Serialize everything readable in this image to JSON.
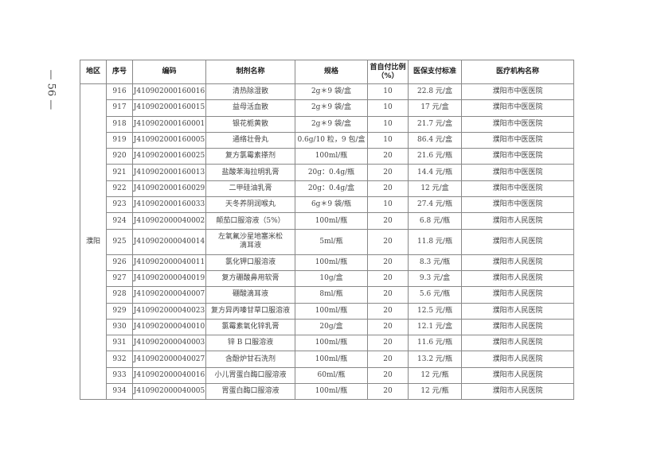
{
  "page_number": "— 56 —",
  "headers": [
    "地区",
    "序号",
    "编码",
    "制剂名称",
    "规格",
    "首自付比例（%）",
    "医保支付标准",
    "医疗机构名称"
  ],
  "region": "濮阳",
  "rows": [
    [
      "916",
      "J410902000160016",
      "清热除湿散",
      "2g＊9 袋/盒",
      "10",
      "22.8 元/盒",
      "濮阳市中医医院"
    ],
    [
      "917",
      "J410902000160015",
      "益母活血散",
      "2g＊9 袋/盒",
      "10",
      "17 元/盒",
      "濮阳市中医医院"
    ],
    [
      "918",
      "J410902000160001",
      "银花栀黄散",
      "2g＊9 袋/盒",
      "10",
      "21.7 元/盒",
      "濮阳市中医医院"
    ],
    [
      "919",
      "J410902000160005",
      "通络壮骨丸",
      "0.6g/10 粒，9 包/盒",
      "10",
      "86.4 元/盒",
      "濮阳市中医医院"
    ],
    [
      "920",
      "J410902000160025",
      "复方氯霉素搽剂",
      "100ml/瓶",
      "20",
      "21.6 元/瓶",
      "濮阳市中医医院"
    ],
    [
      "921",
      "J410902000160013",
      "盐酸苯海拉明乳膏",
      "20g：0.4g/瓶",
      "20",
      "14.4 元/瓶",
      "濮阳市中医医院"
    ],
    [
      "922",
      "J410902000160029",
      "二甲硅油乳膏",
      "20g：0.4g/盒",
      "20",
      "12 元/盒",
      "濮阳市中医医院"
    ],
    [
      "923",
      "J410902000160033",
      "天冬养阴润喉丸",
      "6g＊9 袋/瓶",
      "10",
      "27.4 元/瓶",
      "濮阳市中医医院"
    ],
    [
      "924",
      "J410902000040002",
      "颠茄口服溶液（5%）",
      "100ml/瓶",
      "20",
      "6.8 元/瓶",
      "濮阳市人民医院"
    ],
    [
      "925",
      "J410902000040014",
      "左氧氟沙星地塞米松滴耳液",
      "5ml/瓶",
      "20",
      "11.8 元/瓶",
      "濮阳市人民医院"
    ],
    [
      "926",
      "J410902000040011",
      "氯化钾口服溶液",
      "100ml/瓶",
      "20",
      "8.3 元/瓶",
      "濮阳市人民医院"
    ],
    [
      "927",
      "J410902000040019",
      "复方硼酸鼻用软膏",
      "10g/盒",
      "20",
      "9.3 元/盒",
      "濮阳市人民医院"
    ],
    [
      "928",
      "J410902000040007",
      "硼酸滴耳液",
      "8ml/瓶",
      "20",
      "5.6 元/瓶",
      "濮阳市人民医院"
    ],
    [
      "929",
      "J410902000040023",
      "复方异丙嗪甘草口服溶液",
      "100ml/瓶",
      "20",
      "12.5 元/瓶",
      "濮阳市人民医院"
    ],
    [
      "930",
      "J410902000040010",
      "氯霉素氧化锌乳膏",
      "20g/盒",
      "20",
      "12.1 元/盒",
      "濮阳市人民医院"
    ],
    [
      "931",
      "J410902000040003",
      "锌 B 口服溶液",
      "100ml/瓶",
      "20",
      "11.6 元/瓶",
      "濮阳市人民医院"
    ],
    [
      "932",
      "J410902000040027",
      "含酚炉甘石洗剂",
      "100ml/瓶",
      "20",
      "13.2 元/瓶",
      "濮阳市人民医院"
    ],
    [
      "933",
      "J410902000040016",
      "小儿胃蛋白酶口服溶液",
      "60ml/瓶",
      "20",
      "12 元/瓶",
      "濮阳市人民医院"
    ],
    [
      "934",
      "J410902000040005",
      "胃蛋白酶口服溶液",
      "100ml/瓶",
      "20",
      "12 元/瓶",
      "濮阳市人民医院"
    ]
  ]
}
